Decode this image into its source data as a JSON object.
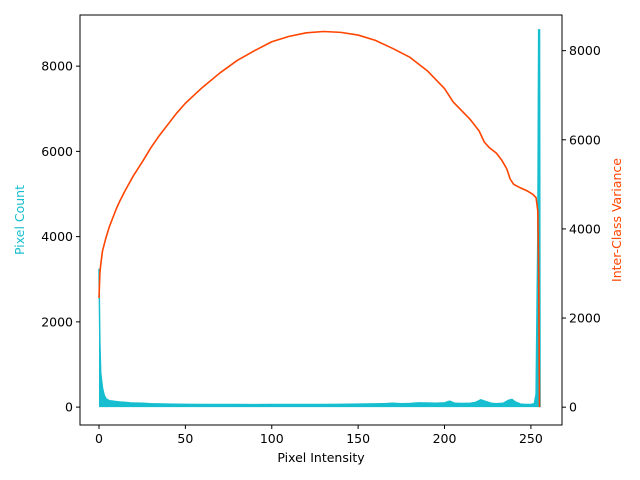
{
  "chart_data": {
    "type": "area",
    "title": "",
    "xlabel": "Pixel Intensity",
    "ylabel_left": "Pixel Count",
    "ylabel_right": "Inter-Class Variance",
    "xlim": [
      -11,
      268
    ],
    "ylim_left": [
      -420,
      9200
    ],
    "ylim_right": [
      -400,
      8800
    ],
    "xticks": [
      0,
      50,
      100,
      150,
      200,
      250
    ],
    "yticks_left": [
      0,
      2000,
      4000,
      6000,
      8000
    ],
    "yticks_right": [
      0,
      2000,
      4000,
      6000,
      8000
    ],
    "colors": {
      "histogram": "#17becf",
      "variance": "#ff4500",
      "axis": "#000000"
    },
    "histogram": {
      "name": "Pixel Count",
      "axis": "left",
      "points": [
        [
          0,
          3250
        ],
        [
          0.5,
          1500
        ],
        [
          1,
          800
        ],
        [
          2,
          450
        ],
        [
          3,
          280
        ],
        [
          4,
          200
        ],
        [
          5,
          170
        ],
        [
          6,
          150
        ],
        [
          8,
          140
        ],
        [
          10,
          130
        ],
        [
          12,
          120
        ],
        [
          15,
          110
        ],
        [
          18,
          100
        ],
        [
          20,
          95
        ],
        [
          25,
          90
        ],
        [
          30,
          80
        ],
        [
          40,
          70
        ],
        [
          50,
          65
        ],
        [
          60,
          60
        ],
        [
          70,
          62
        ],
        [
          80,
          60
        ],
        [
          90,
          58
        ],
        [
          100,
          60
        ],
        [
          110,
          62
        ],
        [
          120,
          60
        ],
        [
          130,
          62
        ],
        [
          140,
          65
        ],
        [
          150,
          70
        ],
        [
          160,
          75
        ],
        [
          165,
          80
        ],
        [
          170,
          90
        ],
        [
          175,
          80
        ],
        [
          180,
          85
        ],
        [
          185,
          100
        ],
        [
          190,
          95
        ],
        [
          195,
          90
        ],
        [
          200,
          100
        ],
        [
          203,
          140
        ],
        [
          206,
          90
        ],
        [
          210,
          85
        ],
        [
          215,
          90
        ],
        [
          218,
          110
        ],
        [
          221,
          170
        ],
        [
          224,
          130
        ],
        [
          227,
          90
        ],
        [
          230,
          80
        ],
        [
          234,
          90
        ],
        [
          237,
          160
        ],
        [
          239,
          180
        ],
        [
          241,
          120
        ],
        [
          244,
          70
        ],
        [
          247,
          60
        ],
        [
          250,
          60
        ],
        [
          252,
          80
        ],
        [
          253,
          300
        ],
        [
          254,
          4000
        ],
        [
          254.5,
          8850
        ],
        [
          255,
          8850
        ],
        [
          255.3,
          0
        ]
      ]
    },
    "variance": {
      "name": "Inter-Class Variance",
      "axis": "right",
      "points": [
        [
          0,
          2450
        ],
        [
          0.5,
          3000
        ],
        [
          1,
          3200
        ],
        [
          2,
          3500
        ],
        [
          4,
          3800
        ],
        [
          6,
          4050
        ],
        [
          8,
          4250
        ],
        [
          10,
          4450
        ],
        [
          12,
          4620
        ],
        [
          15,
          4850
        ],
        [
          20,
          5200
        ],
        [
          25,
          5500
        ],
        [
          30,
          5820
        ],
        [
          35,
          6100
        ],
        [
          40,
          6350
        ],
        [
          45,
          6600
        ],
        [
          50,
          6820
        ],
        [
          55,
          7000
        ],
        [
          60,
          7180
        ],
        [
          70,
          7500
        ],
        [
          80,
          7780
        ],
        [
          90,
          8000
        ],
        [
          100,
          8200
        ],
        [
          110,
          8320
        ],
        [
          120,
          8400
        ],
        [
          130,
          8430
        ],
        [
          140,
          8410
        ],
        [
          150,
          8350
        ],
        [
          160,
          8230
        ],
        [
          170,
          8050
        ],
        [
          180,
          7850
        ],
        [
          190,
          7550
        ],
        [
          200,
          7150
        ],
        [
          205,
          6850
        ],
        [
          210,
          6650
        ],
        [
          215,
          6450
        ],
        [
          220,
          6200
        ],
        [
          223,
          5950
        ],
        [
          226,
          5820
        ],
        [
          230,
          5700
        ],
        [
          233,
          5550
        ],
        [
          236,
          5350
        ],
        [
          238,
          5120
        ],
        [
          240,
          5000
        ],
        [
          244,
          4920
        ],
        [
          248,
          4850
        ],
        [
          251,
          4780
        ],
        [
          253,
          4700
        ],
        [
          254,
          4400
        ],
        [
          254.5,
          3000
        ],
        [
          255,
          0
        ]
      ]
    }
  }
}
